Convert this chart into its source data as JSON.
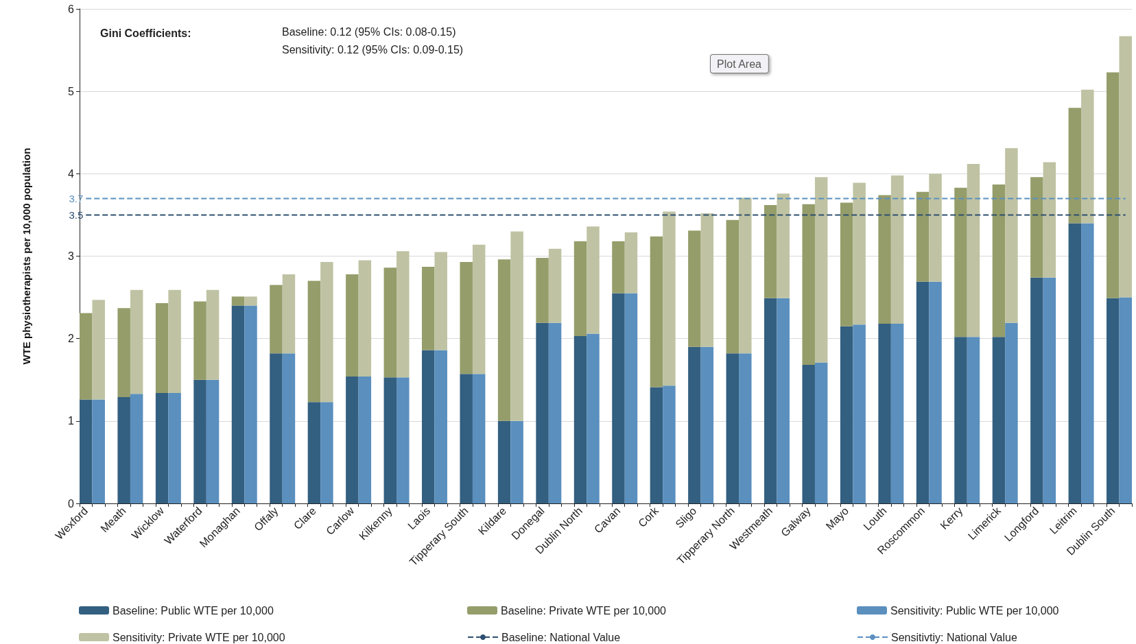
{
  "chart_data": {
    "type": "bar",
    "stacked": true,
    "ylabel": "WTE physiotherapists per 10,000 population",
    "categories": [
      "Wexford",
      null,
      null,
      "Meath",
      null,
      null,
      "Wicklow",
      null,
      null,
      "Waterford",
      null,
      null,
      "Monaghan",
      null,
      null,
      "Offaly",
      null,
      null,
      "Clare",
      null,
      null,
      "Carlow",
      null,
      null,
      "Kilkenny",
      null,
      null,
      "Laois",
      null,
      null,
      "Tipperary South",
      null,
      null,
      "Kildare",
      null,
      null,
      "Donegal",
      null,
      null,
      "Dublin North",
      null,
      null,
      "Cavan",
      null,
      null,
      "Cork",
      null,
      null,
      "Sligo",
      null,
      null,
      "Tipperary North",
      null,
      null,
      "Westmeath",
      null,
      null,
      "Galway",
      null,
      null,
      "Mayo",
      null,
      null,
      "Louth",
      null,
      null,
      "Roscommon",
      null,
      null,
      "Kerry",
      null,
      null,
      "Limerick",
      null,
      null,
      "Longford",
      null,
      null,
      "Leitrim",
      null,
      null,
      "Dublin South",
      null
    ],
    "series": [
      {
        "name": "Baseline: Public WTE per 10,000",
        "color": "#335f80",
        "values": [
          1.26,
          null,
          null,
          1.29,
          null,
          null,
          1.34,
          null,
          null,
          1.5,
          null,
          null,
          2.4,
          null,
          null,
          1.82,
          null,
          null,
          1.23,
          null,
          null,
          1.54,
          null,
          null,
          1.53,
          null,
          null,
          1.86,
          null,
          null,
          1.57,
          null,
          null,
          1.0,
          null,
          null,
          2.19,
          null,
          null,
          2.03,
          null,
          null,
          2.55,
          null,
          null,
          1.41,
          null,
          null,
          1.9,
          null,
          null,
          1.82,
          null,
          null,
          2.49,
          null,
          null,
          1.68,
          null,
          null,
          2.15,
          null,
          null,
          2.18,
          null,
          null,
          2.69,
          null,
          null,
          2.02,
          null,
          null,
          2.02,
          null,
          null,
          2.74,
          null,
          null,
          3.4,
          null,
          null,
          2.49,
          null
        ]
      },
      {
        "name": "Baseline: Private WTE per 10,000",
        "color": "#959d6a",
        "values": [
          1.05,
          null,
          null,
          1.08,
          null,
          null,
          1.09,
          null,
          null,
          0.95,
          null,
          null,
          0.11,
          null,
          null,
          0.83,
          null,
          null,
          1.47,
          null,
          null,
          1.24,
          null,
          null,
          1.33,
          null,
          null,
          1.01,
          null,
          null,
          1.36,
          null,
          null,
          1.96,
          null,
          null,
          0.79,
          null,
          null,
          1.15,
          null,
          null,
          0.63,
          null,
          null,
          1.83,
          null,
          null,
          1.41,
          null,
          null,
          1.62,
          null,
          null,
          1.13,
          null,
          null,
          1.95,
          null,
          null,
          1.5,
          null,
          null,
          1.56,
          null,
          null,
          1.09,
          null,
          null,
          1.81,
          null,
          null,
          1.85,
          null,
          null,
          1.22,
          null,
          null,
          1.4,
          null,
          null,
          2.74,
          null
        ]
      },
      {
        "name": "Sensitivity: Public WTE per 10,000",
        "color": "#5a8fbe",
        "values": [
          null,
          1.26,
          null,
          null,
          1.33,
          null,
          null,
          1.34,
          null,
          null,
          1.5,
          null,
          null,
          2.4,
          null,
          null,
          1.82,
          null,
          null,
          1.23,
          null,
          null,
          1.54,
          null,
          null,
          1.53,
          null,
          null,
          1.86,
          null,
          null,
          1.57,
          null,
          null,
          1.0,
          null,
          null,
          2.19,
          null,
          null,
          2.06,
          null,
          null,
          2.55,
          null,
          null,
          1.43,
          null,
          null,
          1.9,
          null,
          null,
          1.82,
          null,
          null,
          2.49,
          null,
          null,
          1.71,
          null,
          null,
          2.17,
          null,
          null,
          2.18,
          null,
          null,
          2.69,
          null,
          null,
          2.02,
          null,
          null,
          2.19,
          null,
          null,
          2.74,
          null,
          null,
          3.4,
          null,
          null,
          2.5
        ]
      },
      {
        "name": "Sensitivity: Private WTE per 10,000",
        "color": "#bfc3a3",
        "values": [
          null,
          1.21,
          null,
          null,
          1.26,
          null,
          null,
          1.25,
          null,
          null,
          1.09,
          null,
          null,
          0.11,
          null,
          null,
          0.96,
          null,
          null,
          1.7,
          null,
          null,
          1.41,
          null,
          null,
          1.53,
          null,
          null,
          1.19,
          null,
          null,
          1.57,
          null,
          null,
          2.3,
          null,
          null,
          0.9,
          null,
          null,
          1.3,
          null,
          null,
          0.74,
          null,
          null,
          2.11,
          null,
          null,
          1.62,
          null,
          null,
          1.89,
          null,
          null,
          1.27,
          null,
          null,
          2.25,
          null,
          null,
          1.72,
          null,
          null,
          1.8,
          null,
          null,
          1.31,
          null,
          null,
          2.1,
          null,
          null,
          2.12,
          null,
          null,
          1.4,
          null,
          null,
          1.62,
          null,
          null,
          3.17
        ]
      },
      {
        "name": "Baseline: National Value",
        "type": "line",
        "color": "#2d4f70",
        "values": [
          3.5,
          3.5,
          3.5,
          3.5,
          3.5,
          3.5,
          3.5,
          3.5,
          3.5,
          3.5,
          3.5,
          3.5,
          3.5,
          3.5,
          3.5,
          3.5,
          3.5,
          3.5,
          3.5,
          3.5,
          3.5,
          3.5,
          3.5,
          3.5,
          3.5,
          3.5,
          3.5,
          3.5,
          3.5,
          3.5,
          3.5,
          3.5,
          3.5,
          3.5,
          3.5,
          3.5,
          3.5,
          3.5,
          3.5,
          3.5,
          3.5,
          3.5,
          3.5,
          3.5,
          3.5,
          3.5,
          3.5,
          3.5,
          3.5,
          3.5,
          3.5,
          3.5,
          3.5,
          3.5,
          3.5,
          3.5,
          3.5,
          3.5,
          3.5,
          3.5,
          3.5,
          3.5,
          3.5,
          3.5,
          3.5,
          3.5,
          3.5,
          3.5,
          3.5,
          3.5,
          3.5,
          3.5,
          3.5,
          3.5,
          3.5,
          3.5,
          3.5,
          3.5,
          3.5,
          3.5,
          3.5,
          3.5,
          3.5
        ],
        "value_labels": [
          "3.5",
          null,
          null,
          null,
          null,
          null,
          null,
          null,
          null,
          null,
          null,
          null,
          null,
          null,
          null,
          null,
          null,
          null,
          null,
          null,
          null,
          null,
          null,
          null,
          null,
          null,
          null,
          null,
          null,
          null,
          null,
          null,
          null,
          null,
          null,
          null,
          null,
          null,
          null,
          null,
          null,
          null,
          null,
          null,
          null,
          null,
          null,
          null,
          null,
          null,
          null,
          null,
          null,
          null,
          null,
          null,
          null,
          null,
          null,
          null,
          null,
          null,
          null,
          null,
          null,
          null,
          null,
          null,
          null,
          null,
          null,
          null,
          null,
          null,
          null,
          null,
          null,
          null,
          null,
          null,
          null,
          null,
          null
        ]
      },
      {
        "name": "Sensitivtiy: National Value",
        "type": "line",
        "color": "#5b8fbf",
        "values": [
          3.7,
          3.7,
          3.7,
          3.7,
          3.7,
          3.7,
          3.7,
          3.7,
          3.7,
          3.7,
          3.7,
          3.7,
          3.7,
          3.7,
          3.7,
          3.7,
          3.7,
          3.7,
          3.7,
          3.7,
          3.7,
          3.7,
          3.7,
          3.7,
          3.7,
          3.7,
          3.7,
          3.7,
          3.7,
          3.7,
          3.7,
          3.7,
          3.7,
          3.7,
          3.7,
          3.7,
          3.7,
          3.7,
          3.7,
          3.7,
          3.7,
          3.7,
          3.7,
          3.7,
          3.7,
          3.7,
          3.7,
          3.7,
          3.7,
          3.7,
          3.7,
          3.7,
          3.7,
          3.7,
          3.7,
          3.7,
          3.7,
          3.7,
          3.7,
          3.7,
          3.7,
          3.7,
          3.7,
          3.7,
          3.7,
          3.7,
          3.7,
          3.7,
          3.7,
          3.7,
          3.7,
          3.7,
          3.7,
          3.7,
          3.7,
          3.7,
          3.7,
          3.7,
          3.7,
          3.7,
          3.7,
          3.7,
          3.7
        ],
        "value_labels": [
          "3.7",
          null,
          null,
          null,
          null,
          null,
          null,
          null,
          null,
          null,
          null,
          null,
          null,
          null,
          null,
          null,
          null,
          null,
          null,
          null,
          null,
          null,
          null,
          null,
          null,
          null,
          null,
          null,
          null,
          null,
          null,
          null,
          null,
          null,
          null,
          null,
          null,
          null,
          null,
          null,
          null,
          null,
          null,
          null,
          null,
          null,
          null,
          null,
          null,
          null,
          null,
          null,
          null,
          null,
          null,
          null,
          null,
          null,
          null,
          null,
          null,
          null,
          null,
          null,
          null,
          null,
          null,
          null,
          null,
          null,
          null,
          null,
          null,
          null,
          null,
          null,
          null,
          null,
          null,
          null,
          null,
          null,
          null
        ]
      }
    ],
    "line_style": "dashed",
    "marker": "none",
    "ylim": [
      0,
      6
    ],
    "yticks": [
      0,
      1,
      2,
      3,
      4,
      5,
      6
    ],
    "grid": "y",
    "legend": "bottom",
    "annotations": [
      "Gini Coefficients:",
      "Baseline: 0.12 (95% CIs: 0.08-0.15)",
      "Sensitivity: 0.12 (95% CIs: 0.09-0.15)",
      "Plot Area"
    ]
  }
}
